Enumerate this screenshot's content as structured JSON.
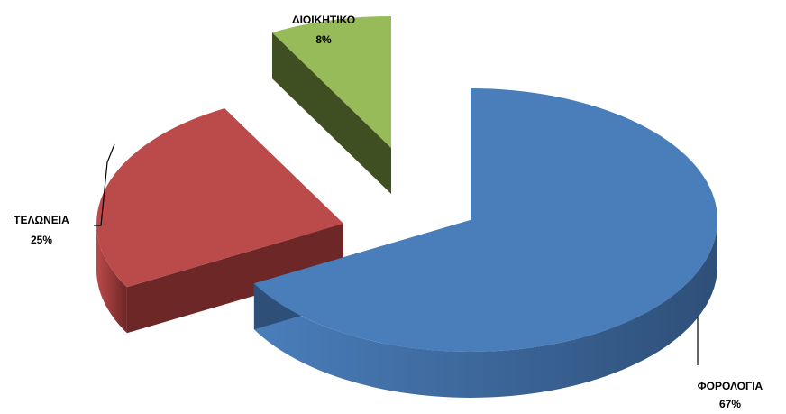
{
  "chart_data": {
    "type": "pie",
    "title": "",
    "style": "3d-exploded",
    "legend": "none",
    "slices": [
      {
        "label": "ΦΟΡΟΛΟΓΙΑ",
        "value": 67,
        "value_label": "67%",
        "color": "#4a7ebb",
        "side_color": "#2e4f78"
      },
      {
        "label": "ΤΕΛΩΝΕΙΑ",
        "value": 25,
        "value_label": "25%",
        "color": "#bb4a4a",
        "side_color": "#6e2727"
      },
      {
        "label": "ΔΙΟΙΚΗΤΙΚΟ",
        "value": 8,
        "value_label": "8%",
        "color": "#98bb59",
        "side_color": "#3f4f22"
      }
    ]
  }
}
